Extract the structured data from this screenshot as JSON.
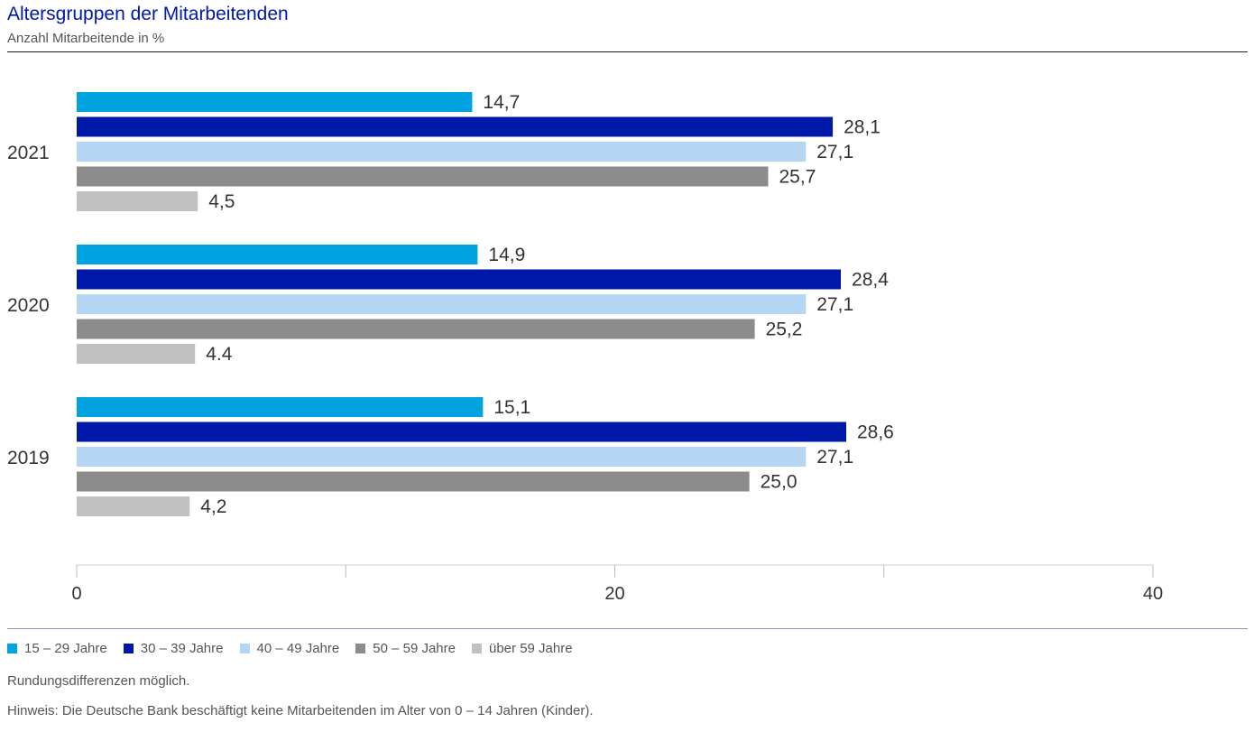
{
  "header": {
    "title": "Altersgruppen der Mitarbeitenden",
    "subtitle": "Anzahl Mitarbeitende in %"
  },
  "chart_data": {
    "type": "bar",
    "orientation": "horizontal",
    "title": "Altersgruppen der Mitarbeitenden",
    "ylabel": "Anzahl Mitarbeitende in %",
    "categories": [
      "2021",
      "2020",
      "2019"
    ],
    "series": [
      {
        "name": "15 – 29 Jahre",
        "color": "#00a3e0",
        "values": [
          14.7,
          14.9,
          15.1
        ],
        "labels": [
          "14,7",
          "14,9",
          "15,1"
        ]
      },
      {
        "name": "30 – 39 Jahre",
        "color": "#0018a8",
        "values": [
          28.1,
          28.4,
          28.6
        ],
        "labels": [
          "28,1",
          "28,4",
          "28,6"
        ]
      },
      {
        "name": "40 – 49 Jahre",
        "color": "#b5d6f3",
        "values": [
          27.1,
          27.1,
          27.1
        ],
        "labels": [
          "27,1",
          "27,1",
          "27,1"
        ]
      },
      {
        "name": "50 – 59 Jahre",
        "color": "#8c8c8c",
        "values": [
          25.7,
          25.2,
          25.0
        ],
        "labels": [
          "25,7",
          "25,2",
          "25,0"
        ]
      },
      {
        "name": "über 59 Jahre",
        "color": "#c1c1c1",
        "values": [
          4.5,
          4.4,
          4.2
        ],
        "labels": [
          "4,5",
          "4.4",
          "4,2"
        ]
      }
    ],
    "xlim": [
      0,
      40
    ],
    "xticks": [
      0,
      10,
      20,
      30,
      40
    ],
    "xtick_labels": [
      "0",
      "",
      "20",
      "",
      "40"
    ],
    "legend_position": "bottom"
  },
  "notes": {
    "rounding": "Rundungsdifferenzen möglich.",
    "hint": "Hinweis: Die Deutsche Bank beschäftigt keine Mitarbeitenden im Alter von 0 – 14 Jahren (Kinder)."
  }
}
